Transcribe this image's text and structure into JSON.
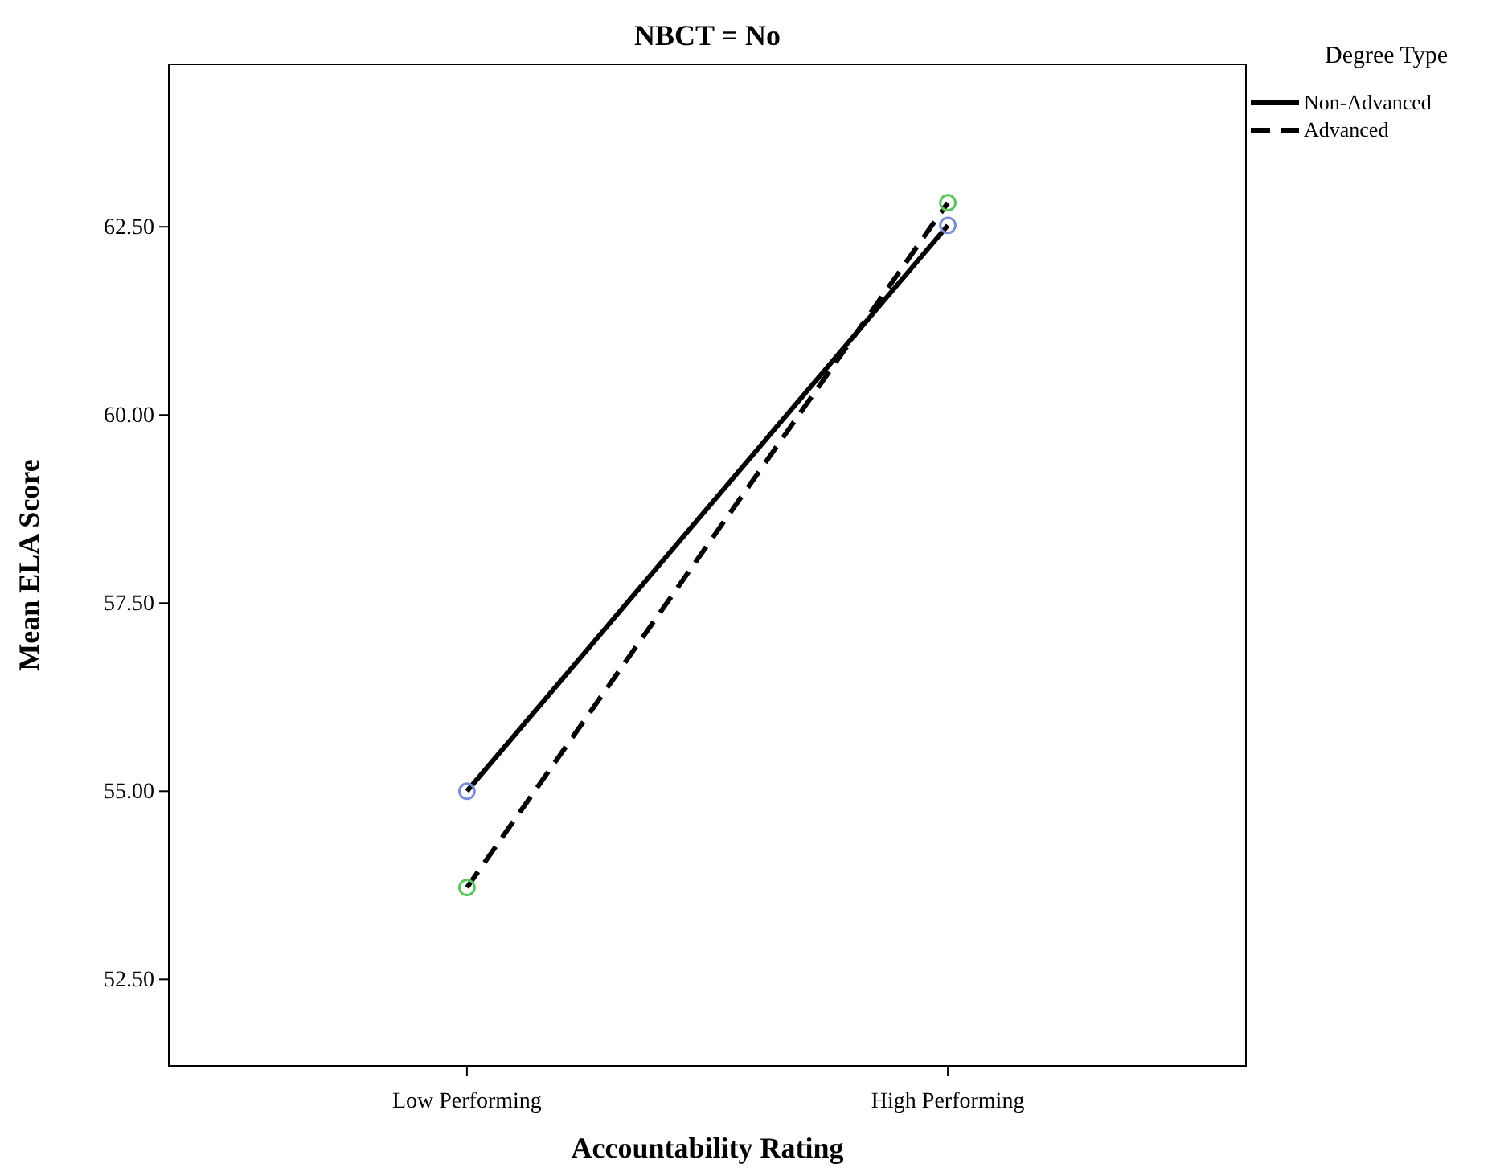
{
  "chart_data": {
    "type": "line",
    "title": "NBCT = No",
    "xlabel": "Accountability Rating",
    "ylabel": "Mean ELA Score",
    "legend_title": "Degree Type",
    "legend": "top right",
    "marker": "circle",
    "grid": false,
    "categories": [
      "Low Performing",
      "High Performing"
    ],
    "ylim": [
      51.35,
      64.66
    ],
    "yticks": [
      {
        "value": 52.5,
        "label": "52.50"
      },
      {
        "value": 55,
        "label": "55.00"
      },
      {
        "value": 57.5,
        "label": "57.50"
      },
      {
        "value": 60,
        "label": "60.00"
      },
      {
        "value": 62.5,
        "label": "62.50"
      }
    ],
    "series": [
      {
        "name": "Non-Advanced",
        "color": "#000000",
        "colors": [
          "#7b8fd6",
          "#7b8fd6"
        ],
        "line_style": "solid",
        "values": [
          55.0,
          62.52
        ]
      },
      {
        "name": "Advanced",
        "color": "#000000",
        "colors": [
          "#5cc45c",
          "#5cc45c"
        ],
        "line_style": "dashed",
        "values": [
          53.72,
          62.82
        ]
      }
    ]
  }
}
